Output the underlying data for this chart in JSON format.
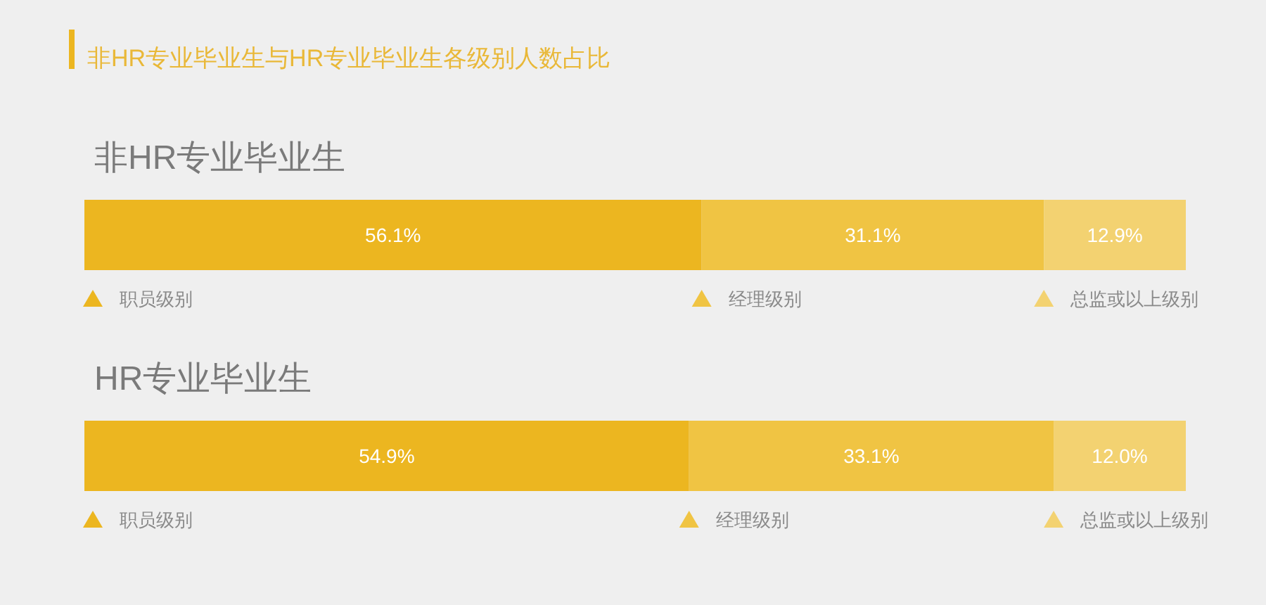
{
  "chart_data": [
    {
      "type": "bar",
      "orientation": "horizontal",
      "stacked": true,
      "title": "非HR专业毕业生与HR专业毕业生各级别人数占比",
      "categories": [
        "非HR专业毕业生"
      ],
      "legend": "bottom",
      "series": [
        {
          "name": "职员级别",
          "color": "#ecb620",
          "values": [
            56.1
          ],
          "value_labels": [
            "56.1%"
          ]
        },
        {
          "name": "经理级别",
          "color": "#f0c443",
          "values": [
            31.1
          ],
          "value_labels": [
            "31.1%"
          ]
        },
        {
          "name": "总监或以上级别",
          "color": "#f3d271",
          "values": [
            12.9
          ],
          "value_labels": [
            "12.9%"
          ]
        }
      ]
    },
    {
      "type": "bar",
      "orientation": "horizontal",
      "stacked": true,
      "categories": [
        "HR专业毕业生"
      ],
      "legend": "bottom",
      "series": [
        {
          "name": "职员级别",
          "color": "#ecb620",
          "values": [
            54.9
          ],
          "value_labels": [
            "54.9%"
          ]
        },
        {
          "name": "经理级别",
          "color": "#f0c443",
          "values": [
            33.1
          ],
          "value_labels": [
            "33.1%"
          ]
        },
        {
          "name": "总监或以上级别",
          "color": "#f3d271",
          "values": [
            12.0
          ],
          "value_labels": [
            "12.0%"
          ]
        }
      ]
    }
  ]
}
